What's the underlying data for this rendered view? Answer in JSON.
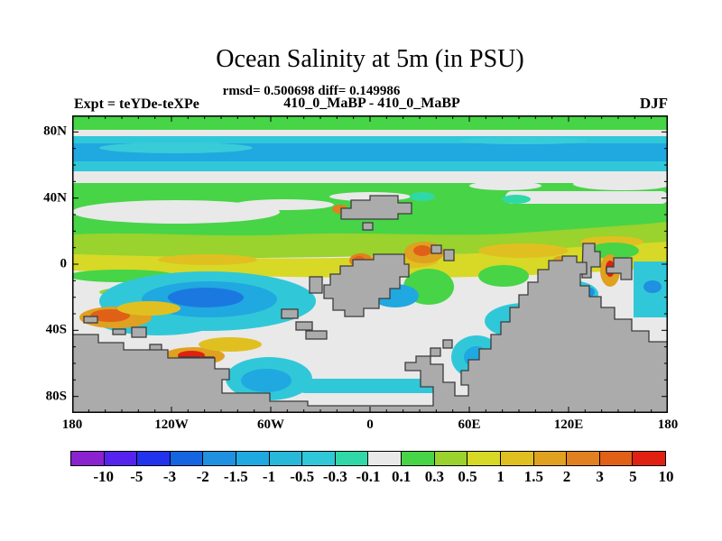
{
  "header": {
    "title": "Ocean Salinity at 5m (in PSU)",
    "stats_line": "rmsd= 0.500698 diff= 0.149986",
    "run_line": "410_0_MaBP - 410_0_MaBP",
    "experiment_label": "Expt = teYDe-teXPe",
    "season_label": "DJF"
  },
  "map": {
    "x_axis": {
      "ticks": [
        {
          "label": "180",
          "deg": -180
        },
        {
          "label": "120W",
          "deg": -120
        },
        {
          "label": "60W",
          "deg": -60
        },
        {
          "label": "0",
          "deg": 0
        },
        {
          "label": "60E",
          "deg": 60
        },
        {
          "label": "120E",
          "deg": 120
        },
        {
          "label": "180",
          "deg": 180
        }
      ]
    },
    "y_axis": {
      "ticks": [
        {
          "label": "80N",
          "deg": 80
        },
        {
          "label": "40N",
          "deg": 40
        },
        {
          "label": "0",
          "deg": 0
        },
        {
          "label": "40S",
          "deg": -40
        },
        {
          "label": "80S",
          "deg": -80
        }
      ]
    }
  },
  "colorbar": {
    "levels": [
      "-10",
      "-5",
      "-3",
      "-2",
      "-1.5",
      "-1",
      "-0.5",
      "-0.3",
      "-0.1",
      "0.1",
      "0.3",
      "0.5",
      "1",
      "1.5",
      "2",
      "3",
      "5",
      "10"
    ],
    "colors": [
      "#8a22cf",
      "#5522ee",
      "#2233ee",
      "#1565e0",
      "#2090e0",
      "#20a8e0",
      "#28b8d8",
      "#30c8d8",
      "#30d8a8",
      "#e9e9e9",
      "#47d447",
      "#9ad22e",
      "#d8d826",
      "#e0c020",
      "#e0a020",
      "#e08020",
      "#e06018",
      "#e02010"
    ],
    "over_color": "#e02010"
  },
  "chart_data": {
    "type": "heatmap",
    "title": "Ocean Salinity at 5m (in PSU)",
    "subtitle": "410_0_MaBP - 410_0_MaBP",
    "variable": "ocean salinity difference at 5m depth",
    "units": "PSU",
    "stats": {
      "rmsd": 0.500698,
      "diff": 0.149986
    },
    "experiment": "teYDe-teXPe",
    "season": "DJF",
    "projection": "lat-lon",
    "xlim": [
      -180,
      180
    ],
    "ylim": [
      -90,
      90
    ],
    "x_major_tick_deg": 60,
    "y_major_tick_deg": 40,
    "minor_tick_deg": 10,
    "contour_levels": [
      -10,
      -5,
      -3,
      -2,
      -1.5,
      -1,
      -0.5,
      -0.3,
      -0.1,
      0.1,
      0.3,
      0.5,
      1,
      1.5,
      2,
      3,
      5,
      10
    ],
    "land_color": "#ababab",
    "legend_position": "bottom",
    "grid": false,
    "features": [
      {
        "name": "polar-north-green-band",
        "lat": [
          76,
          90
        ],
        "approx_value": 0.2
      },
      {
        "name": "arctic-white-band",
        "lat": [
          71,
          76
        ],
        "approx_value": 0.0
      },
      {
        "name": "north-cyan-band",
        "lat": [
          56,
          71
        ],
        "approx_value": -0.7,
        "core_value": -1.2
      },
      {
        "name": "mid-north-white-band",
        "lat": [
          50,
          56
        ],
        "approx_value": 0.0
      },
      {
        "name": "north-green-band",
        "lat": [
          17,
          50
        ],
        "approx_value": 0.2
      },
      {
        "name": "white-patches-40N",
        "lat": [
          36,
          44
        ],
        "lon": [
          -175,
          -15
        ],
        "approx_value": 0.0
      },
      {
        "name": "equatorial-yellow-band",
        "lat": [
          -8,
          17
        ],
        "approx_value": 0.8
      },
      {
        "name": "equatorial-orange-spots",
        "lat": [
          -3,
          8
        ],
        "lon": [
          -15,
          50
        ],
        "approx_value": 2.5
      },
      {
        "name": "south-subtropical-cyan-gyre",
        "lat": [
          -30,
          -12
        ],
        "lon": [
          -130,
          -55
        ],
        "approx_value": -1.2,
        "core_value": -2.5
      },
      {
        "name": "southwest-coastal-orange",
        "lat": [
          -45,
          -28
        ],
        "lon": [
          -178,
          -115
        ],
        "approx_value": 3
      },
      {
        "name": "south-central-cyan-pool",
        "lat": [
          -62,
          -48
        ],
        "lon": [
          -90,
          -40
        ],
        "approx_value": -0.7
      },
      {
        "name": "southeast-cyan-region",
        "lat": [
          -45,
          -15
        ],
        "lon": [
          30,
          115
        ],
        "approx_value": -0.6
      },
      {
        "name": "east-coast-orange-spots",
        "lat": [
          -12,
          5
        ],
        "lon": [
          105,
          145
        ],
        "approx_value": 3
      },
      {
        "name": "southern-continent-land",
        "lat": [
          -90,
          -40
        ],
        "note": "gray land, no data"
      }
    ]
  }
}
